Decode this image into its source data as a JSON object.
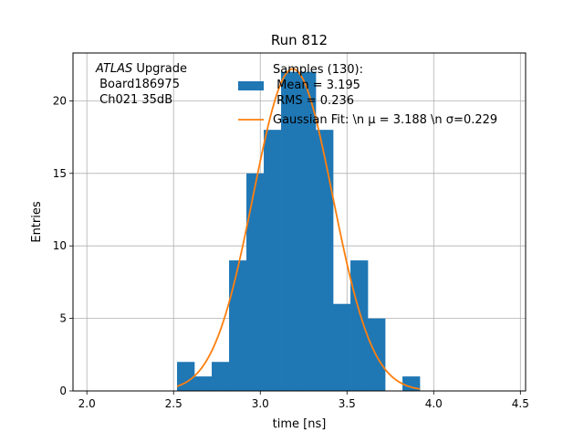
{
  "chart_data": {
    "type": "bar",
    "title": "Run 812",
    "xlabel": "time [ns]",
    "ylabel": "Entries",
    "xlim": [
      1.92,
      4.53
    ],
    "ylim": [
      0,
      23.3
    ],
    "grid": true,
    "xticks": [
      2.0,
      2.5,
      3.0,
      3.5,
      4.0,
      4.5
    ],
    "xtick_labels": [
      "2.0",
      "2.5",
      "3.0",
      "3.5",
      "4.0",
      "4.5"
    ],
    "yticks": [
      0,
      5,
      10,
      15,
      20
    ],
    "ytick_labels": [
      "0",
      "5",
      "10",
      "15",
      "20"
    ],
    "annotation": {
      "atlas": "ATLAS",
      "upgrade": " Upgrade",
      "line2": " Board186975",
      "line3": " Ch021 35dB"
    },
    "histogram": {
      "color": "#1f77b4",
      "bins": [
        {
          "x0": 2.52,
          "x1": 2.62,
          "count": 2
        },
        {
          "x0": 2.62,
          "x1": 2.72,
          "count": 1
        },
        {
          "x0": 2.72,
          "x1": 2.82,
          "count": 2
        },
        {
          "x0": 2.82,
          "x1": 2.92,
          "count": 9
        },
        {
          "x0": 2.92,
          "x1": 3.02,
          "count": 15
        },
        {
          "x0": 3.02,
          "x1": 3.12,
          "count": 18
        },
        {
          "x0": 3.12,
          "x1": 3.22,
          "count": 22
        },
        {
          "x0": 3.22,
          "x1": 3.32,
          "count": 22
        },
        {
          "x0": 3.32,
          "x1": 3.42,
          "count": 18
        },
        {
          "x0": 3.42,
          "x1": 3.52,
          "count": 6
        },
        {
          "x0": 3.52,
          "x1": 3.62,
          "count": 9
        },
        {
          "x0": 3.62,
          "x1": 3.72,
          "count": 5
        },
        {
          "x0": 3.72,
          "x1": 3.82,
          "count": 0
        },
        {
          "x0": 3.82,
          "x1": 3.92,
          "count": 1
        }
      ]
    },
    "fit": {
      "color": "#ff7f0e",
      "mu": 3.188,
      "sigma": 0.229,
      "amplitude": 22.2,
      "x_range": [
        2.52,
        3.92
      ]
    },
    "legend": {
      "placement": "top-center",
      "samples_line1": "Samples (130):",
      "samples_line2": " Mean = 3.195",
      "samples_line3": " RMS = 0.236",
      "fit_label": "Gaussian Fit: \\n μ = 3.188 \\n σ=0.229"
    }
  }
}
